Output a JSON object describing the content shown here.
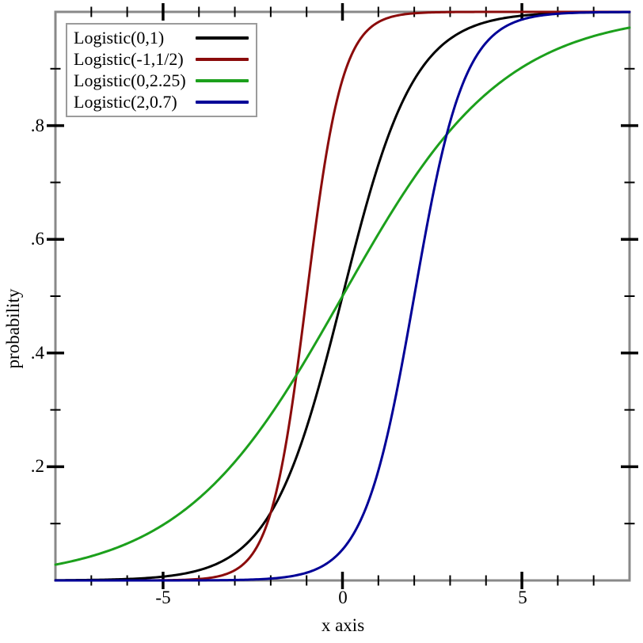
{
  "figure": {
    "background": "#ffffff",
    "frame_color": "#898989",
    "tick_color": "#000000",
    "legend_border_color": "#9b9b9b"
  },
  "chart_data": {
    "type": "line",
    "title": "",
    "xlabel": "x axis",
    "ylabel": "probability",
    "xlim": [
      -8,
      8
    ],
    "ylim": [
      0,
      1
    ],
    "grid": false,
    "legend_position": "top-left",
    "x_major_ticks": [
      -5,
      0,
      5
    ],
    "x_tick_labels": [
      "-5",
      "0",
      "5"
    ],
    "x_minor_step": 1,
    "y_major_ticks": [
      0.2,
      0.4,
      0.6,
      0.8
    ],
    "y_tick_labels": [
      ".2",
      ".4",
      ".6",
      ".8"
    ],
    "y_minor_step": 0.1,
    "curve_function": "logistic_cdf: y = 1/(1+exp(-(x-mu)/s))",
    "series": [
      {
        "name": "Logistic(0,1)",
        "mu": 0,
        "s": 1,
        "color": "#000000"
      },
      {
        "name": "Logistic(-1,1/2)",
        "mu": -1,
        "s": 0.5,
        "color": "#8b0b0b"
      },
      {
        "name": "Logistic(0,2.25)",
        "mu": 0,
        "s": 2.25,
        "color": "#1ca01c"
      },
      {
        "name": "Logistic(2,0.7)",
        "mu": 2,
        "s": 0.7,
        "color": "#000097"
      }
    ]
  }
}
